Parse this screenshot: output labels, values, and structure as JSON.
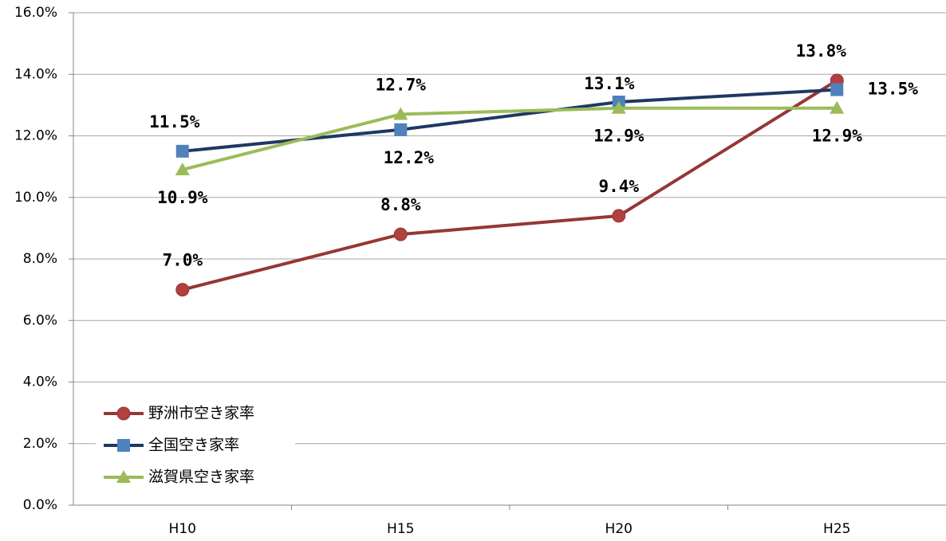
{
  "chart_data": {
    "type": "line",
    "categories": [
      "H10",
      "H15",
      "H20",
      "H25"
    ],
    "series": [
      {
        "name": "野洲市空き家率",
        "color": "#953735",
        "marker_color": "#b0413e",
        "marker": "circle",
        "values": [
          7.0,
          8.8,
          9.4,
          13.8
        ],
        "value_labels": [
          "7.0%",
          "8.8%",
          "9.4%",
          "13.8%"
        ]
      },
      {
        "name": "全国空き家率",
        "color": "#1f3864",
        "marker_color": "#4f81bd",
        "marker": "square",
        "values": [
          11.5,
          12.2,
          13.1,
          13.5
        ],
        "value_labels": [
          "11.5%",
          "12.2%",
          "13.1%",
          "13.5%"
        ]
      },
      {
        "name": "滋賀県空き家率",
        "color": "#9bbb59",
        "marker_color": "#9bbb59",
        "marker": "triangle",
        "values": [
          10.9,
          12.7,
          12.9,
          12.9
        ],
        "value_labels": [
          "10.9%",
          "12.7%",
          "12.9%",
          "12.9%"
        ]
      }
    ],
    "ylim": [
      0,
      16
    ],
    "yticks": [
      {
        "value": 0,
        "label": "0.0%"
      },
      {
        "value": 2,
        "label": "2.0%"
      },
      {
        "value": 4,
        "label": "4.0%"
      },
      {
        "value": 6,
        "label": "6.0%"
      },
      {
        "value": 8,
        "label": "8.0%"
      },
      {
        "value": 10,
        "label": "10.0%"
      },
      {
        "value": 12,
        "label": "12.0%"
      },
      {
        "value": 14,
        "label": "14.0%"
      },
      {
        "value": 16,
        "label": "16.0%"
      }
    ],
    "grid": true,
    "legend": "lower left"
  }
}
